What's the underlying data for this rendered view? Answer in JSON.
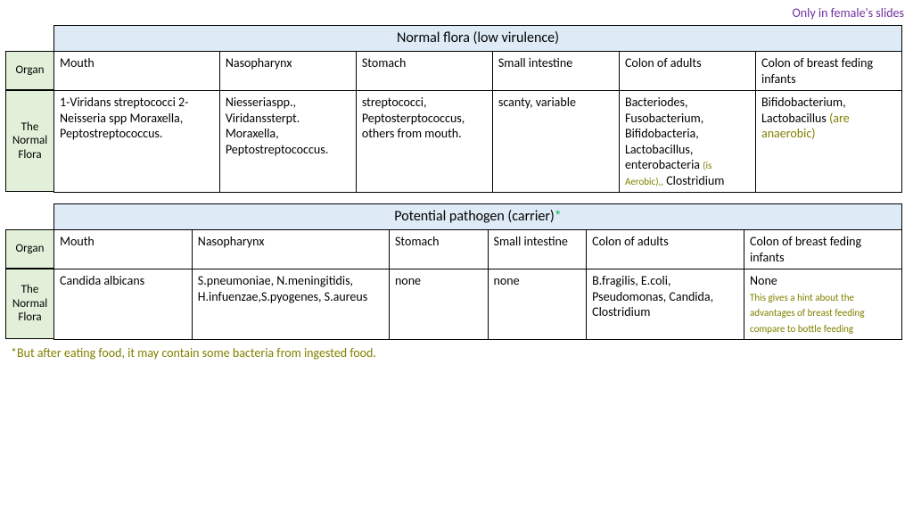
{
  "top_note": "Only in female's slides",
  "table1": {
    "title": "Normal flora (low virulence)",
    "side_organ": "Organ",
    "side_flora": "The Normal Flora",
    "headers": [
      "Mouth",
      "Nasopharynx",
      "Stomach",
      "Small intestine",
      "Colon of adults",
      "Colon of breast feding infants"
    ],
    "cells": {
      "c0": "1-Viridans streptococci 2-Neisseria spp Moraxella, Peptostreptococcus.",
      "c1": "Niesseriaspp., Viridanssterpt. Moraxella, Peptostreptococcus.",
      "c2": "streptococci, Peptosterptococcus, others from mouth.",
      "c3": "scanty, variable",
      "c4a": "Bacteriodes, Fusobacterium, Bifidobacteria, Lactobacillus, enterobacteria ",
      "c4b": "(is Aerobic),,",
      "c4c": " Clostridium",
      "c5a": "Bifidobacterium, Lactobacillus ",
      "c5b": "(are anaerobic)"
    },
    "colwidths": [
      "17%",
      "14%",
      "14%",
      "13%",
      "14%",
      "15%"
    ]
  },
  "table2": {
    "title": "Potential pathogen (carrier)",
    "star": "*",
    "side_organ": "Organ",
    "side_flora": "The Normal Flora",
    "headers": [
      "Mouth",
      "Nasopharynx",
      "Stomach",
      "Small intestine",
      "Colon of adults",
      "Colon of breast feding infants"
    ],
    "cells": {
      "c0": "Candida albicans",
      "c1": "S.pneumoniae, N.meningitidis, H.infuenzae,S.pyogenes, S.aureus",
      "c2": "none",
      "c3": "none",
      "c4": "B.fragilis, E.coli, Pseudomonas, Candida, Clostridium",
      "c5a": "None",
      "c5b": "This gives a hint about the",
      "c5c": "advantages of breast feeding compare to bottle feeding"
    },
    "colwidths": [
      "14%",
      "20%",
      "10%",
      "10%",
      "16%",
      "16%"
    ]
  },
  "footnote": "*But after eating food, it may contain some bacteria from ingested food.",
  "colors": {
    "header_bg": "#deebf7",
    "side_bg": "#e2f0d9",
    "purple": "#7030a0",
    "olive": "#808000",
    "green": "#00b050"
  }
}
